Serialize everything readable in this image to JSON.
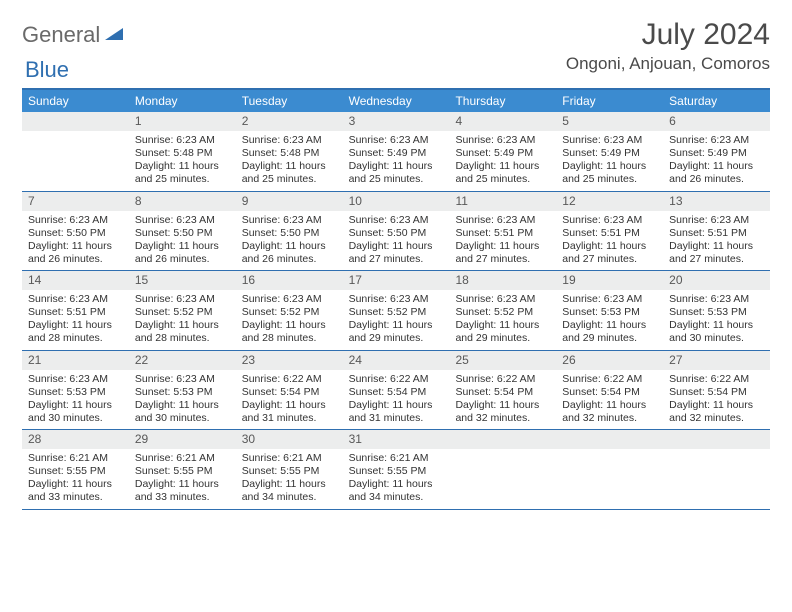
{
  "logo": {
    "part1": "General",
    "part2": "Blue"
  },
  "title": "July 2024",
  "location": "Ongoni, Anjouan, Comoros",
  "colors": {
    "header_bar": "#3b8bd0",
    "border": "#2f6fb0",
    "daynum_bg": "#eceded",
    "text": "#333333",
    "title_text": "#4a4a4a"
  },
  "day_headers": [
    "Sunday",
    "Monday",
    "Tuesday",
    "Wednesday",
    "Thursday",
    "Friday",
    "Saturday"
  ],
  "weeks": [
    [
      null,
      {
        "n": "1",
        "sr": "6:23 AM",
        "ss": "5:48 PM",
        "dl": "11 hours and 25 minutes."
      },
      {
        "n": "2",
        "sr": "6:23 AM",
        "ss": "5:48 PM",
        "dl": "11 hours and 25 minutes."
      },
      {
        "n": "3",
        "sr": "6:23 AM",
        "ss": "5:49 PM",
        "dl": "11 hours and 25 minutes."
      },
      {
        "n": "4",
        "sr": "6:23 AM",
        "ss": "5:49 PM",
        "dl": "11 hours and 25 minutes."
      },
      {
        "n": "5",
        "sr": "6:23 AM",
        "ss": "5:49 PM",
        "dl": "11 hours and 25 minutes."
      },
      {
        "n": "6",
        "sr": "6:23 AM",
        "ss": "5:49 PM",
        "dl": "11 hours and 26 minutes."
      }
    ],
    [
      {
        "n": "7",
        "sr": "6:23 AM",
        "ss": "5:50 PM",
        "dl": "11 hours and 26 minutes."
      },
      {
        "n": "8",
        "sr": "6:23 AM",
        "ss": "5:50 PM",
        "dl": "11 hours and 26 minutes."
      },
      {
        "n": "9",
        "sr": "6:23 AM",
        "ss": "5:50 PM",
        "dl": "11 hours and 26 minutes."
      },
      {
        "n": "10",
        "sr": "6:23 AM",
        "ss": "5:50 PM",
        "dl": "11 hours and 27 minutes."
      },
      {
        "n": "11",
        "sr": "6:23 AM",
        "ss": "5:51 PM",
        "dl": "11 hours and 27 minutes."
      },
      {
        "n": "12",
        "sr": "6:23 AM",
        "ss": "5:51 PM",
        "dl": "11 hours and 27 minutes."
      },
      {
        "n": "13",
        "sr": "6:23 AM",
        "ss": "5:51 PM",
        "dl": "11 hours and 27 minutes."
      }
    ],
    [
      {
        "n": "14",
        "sr": "6:23 AM",
        "ss": "5:51 PM",
        "dl": "11 hours and 28 minutes."
      },
      {
        "n": "15",
        "sr": "6:23 AM",
        "ss": "5:52 PM",
        "dl": "11 hours and 28 minutes."
      },
      {
        "n": "16",
        "sr": "6:23 AM",
        "ss": "5:52 PM",
        "dl": "11 hours and 28 minutes."
      },
      {
        "n": "17",
        "sr": "6:23 AM",
        "ss": "5:52 PM",
        "dl": "11 hours and 29 minutes."
      },
      {
        "n": "18",
        "sr": "6:23 AM",
        "ss": "5:52 PM",
        "dl": "11 hours and 29 minutes."
      },
      {
        "n": "19",
        "sr": "6:23 AM",
        "ss": "5:53 PM",
        "dl": "11 hours and 29 minutes."
      },
      {
        "n": "20",
        "sr": "6:23 AM",
        "ss": "5:53 PM",
        "dl": "11 hours and 30 minutes."
      }
    ],
    [
      {
        "n": "21",
        "sr": "6:23 AM",
        "ss": "5:53 PM",
        "dl": "11 hours and 30 minutes."
      },
      {
        "n": "22",
        "sr": "6:23 AM",
        "ss": "5:53 PM",
        "dl": "11 hours and 30 minutes."
      },
      {
        "n": "23",
        "sr": "6:22 AM",
        "ss": "5:54 PM",
        "dl": "11 hours and 31 minutes."
      },
      {
        "n": "24",
        "sr": "6:22 AM",
        "ss": "5:54 PM",
        "dl": "11 hours and 31 minutes."
      },
      {
        "n": "25",
        "sr": "6:22 AM",
        "ss": "5:54 PM",
        "dl": "11 hours and 32 minutes."
      },
      {
        "n": "26",
        "sr": "6:22 AM",
        "ss": "5:54 PM",
        "dl": "11 hours and 32 minutes."
      },
      {
        "n": "27",
        "sr": "6:22 AM",
        "ss": "5:54 PM",
        "dl": "11 hours and 32 minutes."
      }
    ],
    [
      {
        "n": "28",
        "sr": "6:21 AM",
        "ss": "5:55 PM",
        "dl": "11 hours and 33 minutes."
      },
      {
        "n": "29",
        "sr": "6:21 AM",
        "ss": "5:55 PM",
        "dl": "11 hours and 33 minutes."
      },
      {
        "n": "30",
        "sr": "6:21 AM",
        "ss": "5:55 PM",
        "dl": "11 hours and 34 minutes."
      },
      {
        "n": "31",
        "sr": "6:21 AM",
        "ss": "5:55 PM",
        "dl": "11 hours and 34 minutes."
      },
      null,
      null,
      null
    ]
  ],
  "labels": {
    "sunrise": "Sunrise: ",
    "sunset": "Sunset: ",
    "daylight": "Daylight: "
  }
}
